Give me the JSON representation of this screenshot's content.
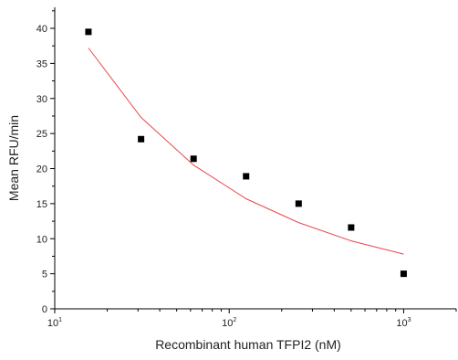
{
  "chart_data": {
    "type": "scatter",
    "title": "",
    "xlabel": "Recombinant human TFPI2 (nM)",
    "ylabel": "Mean RFU/min",
    "x_scale": "log",
    "xlim": [
      10,
      2000
    ],
    "ylim": [
      0,
      43
    ],
    "grid": false,
    "x_ticks": [
      {
        "value": 10,
        "base": "10",
        "exp": "1"
      },
      {
        "value": 100,
        "base": "10",
        "exp": "2"
      },
      {
        "value": 1000,
        "base": "10",
        "exp": "3"
      }
    ],
    "y_ticks": [
      "0",
      "5",
      "10",
      "15",
      "20",
      "25",
      "30",
      "35",
      "40"
    ],
    "series": [
      {
        "marker": "square",
        "color": "#000000",
        "points": [
          {
            "x": 15.6,
            "y": 39.5
          },
          {
            "x": 31.25,
            "y": 24.2
          },
          {
            "x": 62.5,
            "y": 21.4
          },
          {
            "x": 125,
            "y": 18.9
          },
          {
            "x": 250,
            "y": 15.0
          },
          {
            "x": 500,
            "y": 11.6
          },
          {
            "x": 1000,
            "y": 5.0
          }
        ]
      },
      {
        "type": "line",
        "color": "#e8474c",
        "points": [
          {
            "x": 15.6,
            "y": 37.2
          },
          {
            "x": 31.25,
            "y": 27.3
          },
          {
            "x": 62.5,
            "y": 20.5
          },
          {
            "x": 125,
            "y": 15.7
          },
          {
            "x": 250,
            "y": 12.3
          },
          {
            "x": 500,
            "y": 9.7
          },
          {
            "x": 1000,
            "y": 7.8
          }
        ]
      }
    ]
  }
}
